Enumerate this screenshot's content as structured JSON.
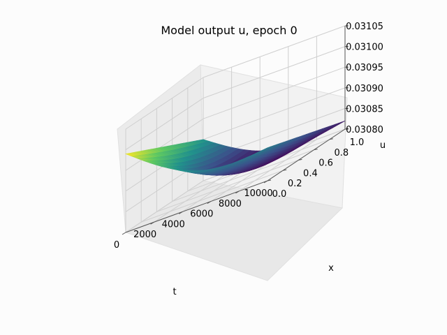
{
  "chart_data": {
    "type": "surface3d",
    "title": "Model output u, epoch 0",
    "xlabel": "t",
    "ylabel": "x",
    "zlabel": "u",
    "xlim": [
      0,
      10000
    ],
    "ylim": [
      0,
      1
    ],
    "zlim": [
      0.0308,
      0.03105
    ],
    "xticks": [
      "0",
      "2000",
      "4000",
      "6000",
      "8000",
      "10000"
    ],
    "yticks": [
      "0.0",
      "0.2",
      "0.4",
      "0.6",
      "0.8",
      "1.0"
    ],
    "zticks": [
      "0.03080",
      "0.03085",
      "0.03090",
      "0.03095",
      "0.03100",
      "0.03105"
    ],
    "colormap": "viridis",
    "grid": true,
    "corner_values": {
      "t0_x0": 0.03099,
      "t0_x1": 0.0309,
      "t10000_x0": 0.03088,
      "t10000_x1": 0.03082
    },
    "surface_shape": "bowl, highest at t=0 x=0, minimum near t=7000 x=0.7"
  }
}
